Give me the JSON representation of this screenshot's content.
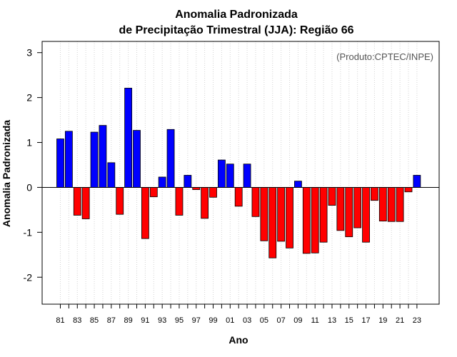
{
  "chart_data": {
    "type": "bar",
    "title": [
      "Anomalia Padronizada",
      "de Precipitação Trimestral (JJA): Região 66"
    ],
    "credit": "(Produto:CPTEC/INPE)",
    "xlabel": "Ano",
    "ylabel": "Anomalia Padronizada",
    "ylim": [
      -2.6,
      3.25
    ],
    "yticks": [
      -2,
      -1,
      0,
      1,
      2,
      3
    ],
    "xtick_labels": [
      "81",
      "83",
      "85",
      "87",
      "89",
      "91",
      "93",
      "95",
      "97",
      "99",
      "01",
      "03",
      "05",
      "07",
      "09",
      "11",
      "13",
      "15",
      "17",
      "19",
      "21",
      "23"
    ],
    "colors": {
      "positive": "#0000ff",
      "negative": "#ff0000"
    },
    "categories": [
      "1981",
      "1982",
      "1983",
      "1984",
      "1985",
      "1986",
      "1987",
      "1988",
      "1989",
      "1990",
      "1991",
      "1992",
      "1993",
      "1994",
      "1995",
      "1996",
      "1997",
      "1998",
      "1999",
      "2000",
      "2001",
      "2002",
      "2003",
      "2004",
      "2005",
      "2006",
      "2007",
      "2008",
      "2009",
      "2010",
      "2011",
      "2012",
      "2013",
      "2014",
      "2015",
      "2016",
      "2017",
      "2018",
      "2019",
      "2020",
      "2021",
      "2022",
      "2023"
    ],
    "values": [
      1.08,
      1.25,
      -0.62,
      -0.7,
      1.23,
      1.38,
      0.55,
      -0.6,
      2.21,
      1.27,
      -1.14,
      -0.21,
      0.23,
      1.29,
      -0.62,
      0.27,
      -0.05,
      -0.69,
      -0.22,
      0.61,
      0.52,
      -0.42,
      0.52,
      -0.65,
      -1.19,
      -1.57,
      -1.2,
      -1.35,
      0.14,
      -1.47,
      -1.46,
      -1.22,
      -0.4,
      -0.96,
      -1.1,
      -0.9,
      -1.22,
      -0.29,
      -0.75,
      -0.76,
      -0.76,
      -0.1,
      0.27
    ]
  }
}
